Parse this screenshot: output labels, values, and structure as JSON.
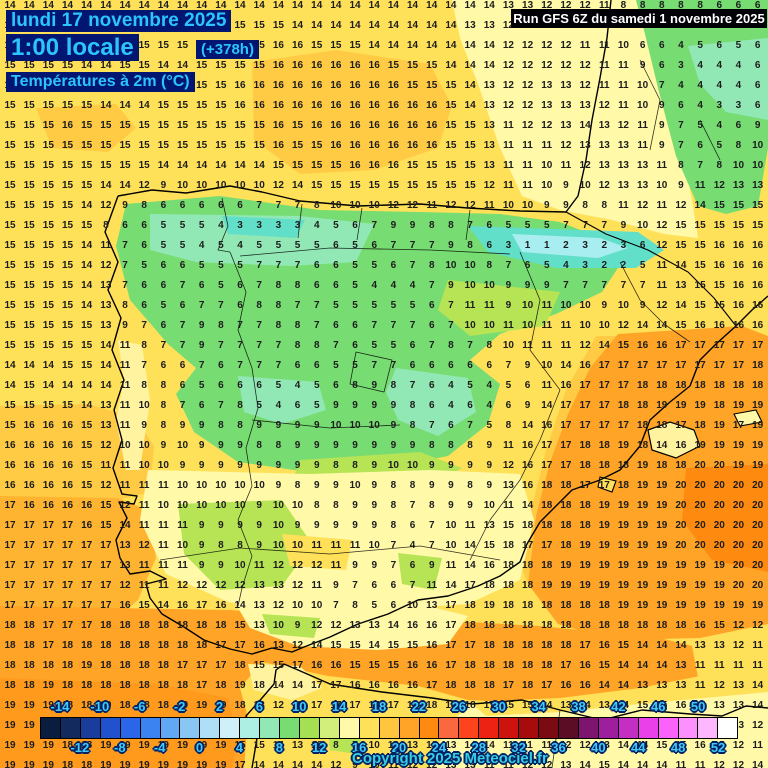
{
  "title": {
    "date": "lundi 17 novembre 2025",
    "time": "1:00 locale",
    "run_offset": "(+378h)",
    "variable": "Températures à 2m (°C)"
  },
  "run_info": "Run GFS 6Z du samedi 1 novembre 2025",
  "copyright": "Copyright 2025 Meteociel.fr",
  "colors": {
    "header_text": "#2BC4FF",
    "header_background": "#001670",
    "run_banner_background": "#000006",
    "run_banner_text": "#FFFFFF",
    "scale_label_text": "#41CBF5",
    "label_outline": "#002266",
    "number_text": "#1C1C1C",
    "sea_warm_yellow": "#FFE159",
    "land_green": "#77DC72",
    "hot_orange": "#FF8A10"
  },
  "scale": {
    "unit": "°C",
    "min": -16,
    "max": 54,
    "top_labels": [
      "-14",
      "-10",
      "-6",
      "-2",
      "2",
      "6",
      "10",
      "14",
      "18",
      "22",
      "26",
      "30",
      "34",
      "38",
      "42",
      "46",
      "50"
    ],
    "bottom_labels": [
      "-12",
      "-8",
      "-4",
      "0",
      "4",
      "8",
      "12",
      "16",
      "20",
      "24",
      "28",
      "32",
      "36",
      "40",
      "44",
      "48",
      "52"
    ],
    "segment_colors": [
      "#0B1D3F",
      "#122A5E",
      "#1A3C9A",
      "#2152CE",
      "#2B66E8",
      "#3C83F2",
      "#60A8F4",
      "#8AC6F3",
      "#AEDFF6",
      "#CFEFF9",
      "#AEEFE3",
      "#92E8B4",
      "#77DC72",
      "#A4E051",
      "#D2EF7B",
      "#FFF9A8",
      "#FFE159",
      "#FFC53E",
      "#FFA426",
      "#FF8A10",
      "#F9683F",
      "#FD441C",
      "#EE2212",
      "#CE130F",
      "#A60C0C",
      "#7C0A12",
      "#5C0D26",
      "#7D156F",
      "#9E1F9E",
      "#C22FC2",
      "#E940E9",
      "#FA62FA",
      "#FC90FC",
      "#FDB8FD",
      "#FFFFFF"
    ]
  },
  "temperature_grid": {
    "cols": 40,
    "col_spacing": 19.17,
    "row_spacing": 20,
    "rows": [
      "14 14 14 14 14 14 14 14 14 14 14 14 14 14 14 14 14 14 14 14 14 14 14 14 14 14 13 13 12 12 12 11 8 8 8 8 8 6 6 6",
      "15 15 15 15 15 15 15 15 15 15 15 15 15 15 15 14 14 14 14 14 14 14 14 14 13 13 12 12 12 12 11 11 10 8 6 5 5 6 6 6",
      "14 15 15 15 15 15 15 15 15 15 15 15 15 15 16 16 15 15 15 14 14 14 14 14 14 14 12 12 12 12 11 11 10 6 6 4 5 6 5 6",
      "15 15 15 15 14 14 15 15 14 14 15 15 15 15 16 16 16 16 16 16 15 15 15 14 14 14 12 12 12 12 12 11 11 9 6 3 4 4 4 6",
      "15 15 15 15 15 15 15 15 15 15 15 15 16 16 16 16 16 16 16 16 16 15 15 15 14 13 12 12 13 13 12 11 11 10 7 4 4 4 4 6",
      "15 15 15 15 15 14 14 14 15 15 15 15 16 16 16 16 16 16 16 16 16 16 16 15 14 13 12 12 13 13 13 12 11 10 9 6 4 3 3 6",
      "15 15 15 16 15 15 15 15 15 15 15 15 15 15 16 15 16 16 16 16 16 16 16 15 15 13 11 12 12 13 14 13 12 11 9 7 5 4 6 9",
      "15 15 15 15 15 15 15 15 15 15 15 15 15 15 16 15 15 16 16 16 16 16 16 15 15 13 11 11 11 12 13 13 13 11 9 7 6 5 8 10",
      "15 15 15 15 15 15 15 15 14 14 14 14 14 14 15 15 15 15 16 16 16 15 15 15 15 13 11 11 10 11 12 13 13 13 11 8 7 8 10 10",
      "15 15 15 15 15 14 14 12 9 10 10 10 10 10 12 14 15 15 15 15 15 15 15 15 15 12 11 11 10 9 10 12 13 13 10 9 11 12 13 13",
      "15 15 15 15 14 12 9 8 6 6 6 6 6 7 7 7 8 10 10 10 12 12 11 12 12 11 10 10 9 9 8 8 11 12 11 12 14 15 15 15",
      "15 15 15 15 15 8 6 6 5 5 5 4 3 3 3 3 4 5 6 7 9 9 8 8 7 6 5 5 5 7 7 7 9 10 12 15 15 15 15 15",
      "15 15 15 15 14 11 7 6 5 5 4 5 4 5 5 5 5 6 5 6 7 7 7 9 8 6 3 1 1 2 3 2 3 6 12 15 15 16 16 16",
      "15 15 15 15 14 12 7 5 6 6 5 5 5 7 7 7 6 6 5 5 6 7 8 10 10 8 7 6 5 4 3 2 2 5 11 14 15 16 16 16",
      "15 15 15 15 14 13 7 6 6 7 6 5 6 7 8 8 6 6 5 4 4 4 7 9 10 10 9 9 9 7 7 7 7 7 11 13 15 15 16 16",
      "15 15 15 15 14 13 8 6 5 6 7 7 6 8 8 7 7 5 5 5 5 5 6 7 11 11 9 10 11 10 10 9 10 9 12 14 15 15 16 16",
      "15 15 15 15 15 13 9 7 6 7 9 8 7 7 8 8 7 6 6 7 7 7 6 7 10 10 11 10 11 11 10 10 12 14 14 15 16 16 16 16",
      "15 15 15 15 15 14 11 8 7 7 9 7 7 7 7 8 8 7 6 5 5 6 7 8 7 8 10 11 11 11 12 14 15 16 16 17 17 17 17 17",
      "14 14 14 15 15 14 11 7 6 6 7 6 7 7 7 6 6 5 5 7 7 6 6 6 6 6 7 9 10 14 16 17 17 17 17 17 17 17 17 18",
      "14 15 14 14 14 14 11 8 8 6 5 6 6 6 5 4 5 6 8 9 8 7 6 4 5 4 5 6 11 16 17 17 17 18 18 18 18 18 18 18",
      "15 15 15 15 14 13 11 10 8 7 6 7 8 5 4 6 5 9 9 9 9 8 6 4 6 4 6 9 14 17 17 17 18 18 19 19 19 18 19 19",
      "15 16 16 16 15 13 11 9 8 9 9 8 8 9 9 9 9 10 10 10 9 8 7 6 7 5 8 14 16 17 17 17 17 18 18 17 18 19 17 19",
      "16 16 16 16 15 12 10 10 9 10 9 9 9 8 8 9 9 9 9 9 9 9 8 8 8 9 11 16 17 17 18 18 19 18 14 16 19 19 19 19",
      "16 16 16 16 15 11 11 10 10 9 9 9 9 9 9 9 9 8 8 9 10 10 9 9 9 9 12 16 17 17 18 18 18 19 18 18 20 20 19 19",
      "16 16 16 16 15 12 11 11 11 10 10 10 10 10 9 8 9 9 10 9 8 8 9 9 8 9 13 16 18 18 17 17 18 19 19 20 20 20 20 20",
      "17 16 16 16 16 15 12 11 10 10 10 10 10 9 10 10 8 8 9 9 8 7 8 9 9 10 11 14 18 18 18 19 19 19 19 20 20 20 20 20",
      "17 17 17 17 16 15 14 11 11 11 9 9 9 9 10 9 9 9 9 9 8 6 7 10 11 13 15 18 18 18 18 19 19 19 19 20 20 20 20 20",
      "17 17 17 17 17 17 13 12 11 10 9 8 8 9 10 10 11 11 11 10 7 4 7 10 14 15 18 17 17 18 19 19 19 19 19 20 20 20 20 20",
      "17 17 17 17 17 17 13 11 11 11 9 9 10 11 12 12 12 11 9 9 7 6 9 11 14 16 18 18 18 19 19 19 19 19 19 19 19 19 20 20",
      "17 17 17 17 17 17 12 11 11 12 12 12 12 13 13 12 11 9 7 6 6 7 11 14 17 18 18 18 19 19 19 19 19 19 19 19 19 19 20 20",
      "17 17 17 17 17 17 16 15 14 16 17 16 14 13 12 10 10 7 8 5 6 10 13 17 18 19 18 18 18 18 18 18 19 19 19 19 19 19 19 19",
      "18 18 17 17 17 18 18 18 18 18 18 18 15 13 10 9 12 12 13 13 14 16 16 17 18 18 18 18 18 18 18 18 18 18 18 18 16 15 12 12",
      "18 18 17 18 18 18 18 18 18 18 18 17 17 16 13 12 14 15 15 14 15 15 16 17 17 18 18 18 18 18 17 16 15 14 14 14 13 13 12 11",
      "18 18 18 18 19 18 18 18 18 17 17 17 18 15 15 17 16 16 15 15 15 16 16 17 18 18 18 18 18 17 16 15 14 14 14 13 11 11 11 11",
      "18 18 19 18 18 18 18 18 18 18 17 18 19 18 14 14 17 17 16 16 16 16 17 18 18 18 17 18 17 16 16 14 14 13 13 13 11 12 13 14",
      "19 19 19 18 18 19 18 18 18 19 19 19 18 13 12 15 17 17 17 17 17 17 18 18 18 17 15 15 14 13 14 13 14 15 15 16 14 13 13 14",
      "19 19 19 19 19 19 19 19 19 19 19 18 17 15 14 14 15 16 17 17 17 17 18 18 17 16 15 14 14 13 13 13 14 14 15 15 14 13 13 12",
      "19 19 19 18 18 19 19 19 19 19 19 19 15 15 14 13 12 8 7 10 13 13 13 13 14 14 11 11 11 12 12 13 14 14 15 15 16 15 12 11",
      "19 19 19 18 18 19 19 19 19 19 19 19 17 14 14 14 14 12 9 10 11 12 12 13 13 11 11 12 12 13 14 15 14 14 14 11 11 12 12 14"
    ]
  }
}
